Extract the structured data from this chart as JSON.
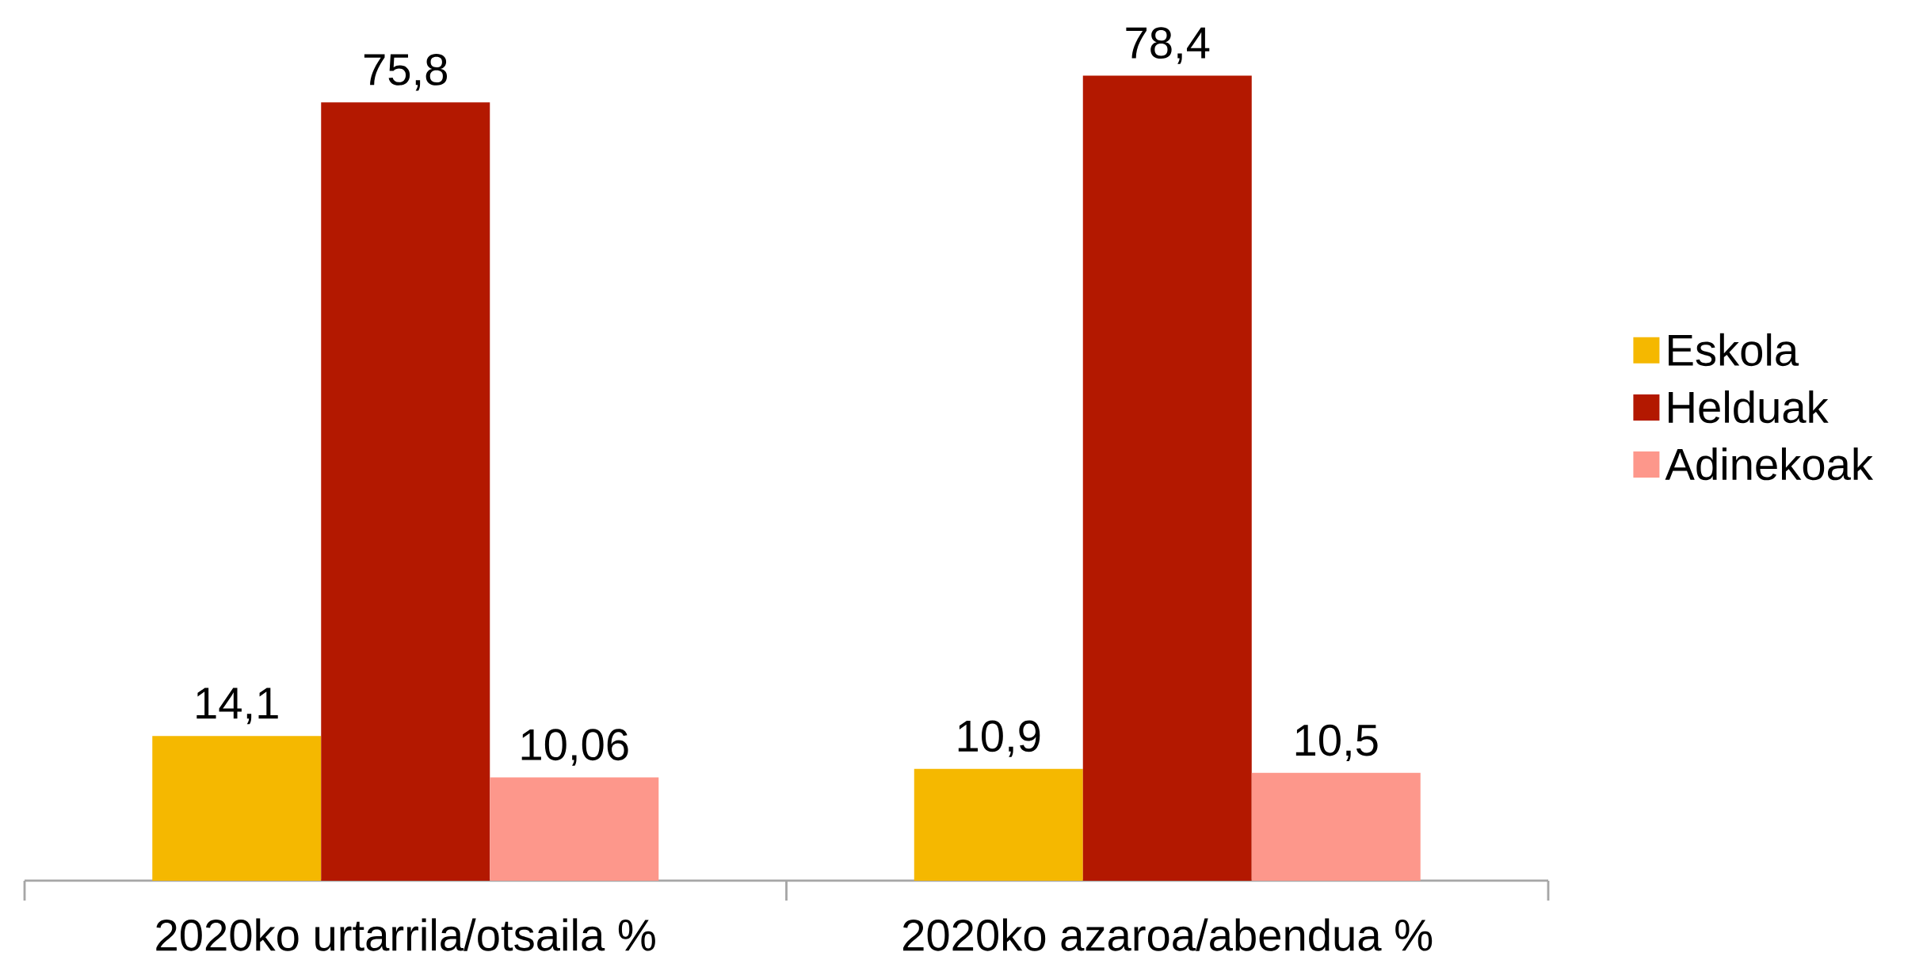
{
  "chart_data": {
    "type": "bar",
    "categories": [
      "2020ko urtarrila/otsaila %",
      "2020ko azaroa/abendua %"
    ],
    "series": [
      {
        "name": "Eskola",
        "color": "#f5b800",
        "values": [
          14.1,
          10.9
        ],
        "value_labels": [
          "14,1",
          "10,9"
        ]
      },
      {
        "name": "Helduak",
        "color": "#b31800",
        "values": [
          75.8,
          78.4
        ],
        "value_labels": [
          "75,8",
          "78,4"
        ]
      },
      {
        "name": "Adinekoak",
        "color": "#fd978b",
        "values": [
          10.06,
          10.5
        ],
        "value_labels": [
          "10,06",
          "10,5"
        ]
      }
    ],
    "legend": "right"
  }
}
